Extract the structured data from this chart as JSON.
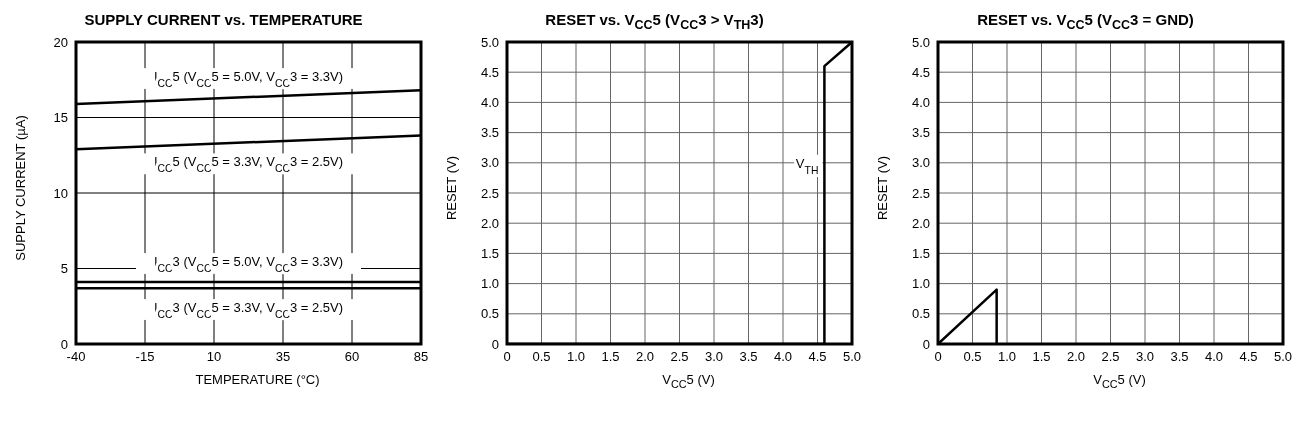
{
  "chart_data": [
    {
      "type": "line",
      "title": "SUPPLY CURRENT vs. TEMPERATURE",
      "xlabel": "TEMPERATURE (°C)",
      "ylabel": "SUPPLY CURRENT (µA)",
      "xlim": [
        -40,
        85
      ],
      "xticks": [
        -40,
        -15,
        10,
        35,
        60,
        85
      ],
      "ylim": [
        0,
        20
      ],
      "yticks": [
        0,
        5,
        10,
        15,
        20
      ],
      "grid": true,
      "marker": "none",
      "line_style": "solid",
      "series": [
        {
          "name": "I$_{CC}$5  (V$_{CC}$5 = 5.0V, V$_{CC}$3 = 3.3V)",
          "color": "#000000",
          "x": [
            -40,
            85
          ],
          "values": [
            15.9,
            16.8
          ]
        },
        {
          "name": "I$_{CC}$5  (V$_{CC}$5 = 3.3V, V$_{CC}$3 = 2.5V)",
          "color": "#000000",
          "x": [
            -40,
            85
          ],
          "values": [
            12.9,
            13.8
          ]
        },
        {
          "name": "I$_{CC}$3 (V$_{CC}$5 = 5.0V, V$_{CC}$3 = 3.3V)",
          "color": "#000000",
          "x": [
            -40,
            85
          ],
          "values": [
            4.1,
            4.1
          ]
        },
        {
          "name": "I$_{CC}$3  (V$_{CC}$5 = 3.3V, V$_{CC}$3 = 2.5V)",
          "color": "#000000",
          "x": [
            -40,
            85
          ],
          "values": [
            3.7,
            3.7
          ]
        }
      ]
    },
    {
      "type": "line",
      "title": "RESET vs. V$_{CC}$5 (V$_{CC}$3 > V$_{TH}$3)",
      "xlabel": "V$_{CC}$5 (V)",
      "ylabel": "RESET (V)",
      "xlim": [
        0,
        5
      ],
      "xticks": [
        0,
        0.5,
        {
          "value": 1,
          "label": "1.0"
        },
        1.5,
        {
          "value": 2,
          "label": "2.0"
        },
        2.5,
        {
          "value": 3,
          "label": "3.0"
        },
        3.5,
        {
          "value": 4,
          "label": "4.0"
        },
        4.5,
        {
          "value": 5,
          "label": "5.0"
        }
      ],
      "ylim": [
        0,
        5
      ],
      "yticks": [
        0,
        0.5,
        {
          "value": 1,
          "label": "1.0"
        },
        1.5,
        {
          "value": 2,
          "label": "2.0"
        },
        2.5,
        {
          "value": 3,
          "label": "3.0"
        },
        3.5,
        {
          "value": 4,
          "label": "4.0"
        },
        4.5,
        {
          "value": 5,
          "label": "5.0"
        }
      ],
      "grid": true,
      "marker": "none",
      "line_style": "solid",
      "annotations": [
        {
          "text": "V$_{TH}$",
          "x": 4.6,
          "y": 3.0
        }
      ],
      "series": [
        {
          "color": "#000000",
          "x": [
            0,
            4.6,
            4.6,
            5.0
          ],
          "values": [
            0,
            0,
            4.6,
            5.0
          ]
        }
      ]
    },
    {
      "type": "line",
      "title": "RESET vs. V$_{CC}$5 (V$_{CC}$3 = GND)",
      "xlabel": "V$_{CC}$5 (V)",
      "ylabel": "RESET (V)",
      "xlim": [
        0,
        5
      ],
      "xticks": [
        0,
        0.5,
        {
          "value": 1,
          "label": "1.0"
        },
        1.5,
        {
          "value": 2,
          "label": "2.0"
        },
        2.5,
        {
          "value": 3,
          "label": "3.0"
        },
        3.5,
        {
          "value": 4,
          "label": "4.0"
        },
        4.5,
        {
          "value": 5,
          "label": "5.0"
        }
      ],
      "ylim": [
        0,
        5
      ],
      "yticks": [
        0,
        0.5,
        {
          "value": 1,
          "label": "1.0"
        },
        1.5,
        {
          "value": 2,
          "label": "2.0"
        },
        2.5,
        {
          "value": 3,
          "label": "3.0"
        },
        3.5,
        {
          "value": 4,
          "label": "4.0"
        },
        4.5,
        {
          "value": 5,
          "label": "5.0"
        }
      ],
      "grid": true,
      "marker": "none",
      "line_style": "solid",
      "series": [
        {
          "color": "#000000",
          "x": [
            0,
            0.85,
            0.85
          ],
          "values": [
            0,
            0.9,
            0
          ]
        }
      ]
    }
  ]
}
